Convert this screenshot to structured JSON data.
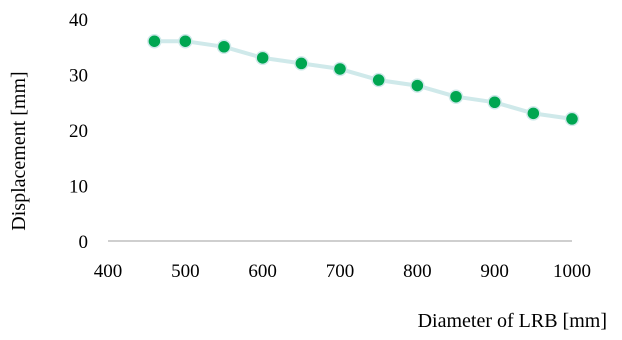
{
  "chart_data": {
    "type": "line",
    "xlabel": "Diameter of LRB [mm]",
    "ylabel": "Displacement [mm]",
    "xlim": [
      400,
      1000
    ],
    "ylim": [
      0,
      40
    ],
    "x_ticks": [
      400,
      500,
      600,
      700,
      800,
      900,
      1000
    ],
    "y_ticks": [
      0,
      10,
      20,
      30,
      40
    ],
    "grid": false,
    "legend": "none",
    "series": [
      {
        "x": [
          460,
          500,
          550,
          600,
          650,
          700,
          750,
          800,
          850,
          900,
          950,
          1000
        ],
        "y": [
          36,
          36,
          35,
          33,
          32,
          31,
          29,
          28,
          26,
          25,
          23,
          22
        ],
        "line_color": "#cfe9ea",
        "marker_color": "#00a651"
      }
    ]
  }
}
